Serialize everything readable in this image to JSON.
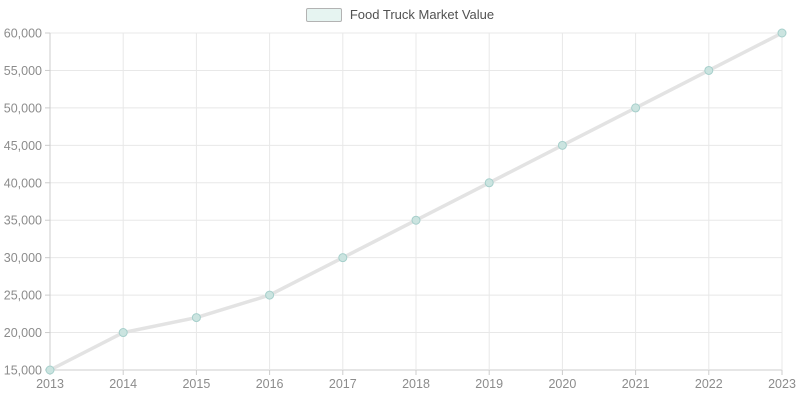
{
  "legend": {
    "label": "Food Truck Market Value"
  },
  "colors": {
    "background": "#ffffff",
    "grid": "#e8e8e8",
    "axis": "#cccccc",
    "tick": "#cccccc",
    "axis_label": "#8c8c8c",
    "legend_text": "#525252",
    "legend_swatch_fill": "#e6f4f1",
    "legend_swatch_border": "#b3b3b3",
    "line": "#e3e3e3",
    "point_fill": "#cbe4e0",
    "point_stroke": "#a6cfcb"
  },
  "chart_data": {
    "type": "line",
    "title": "",
    "legend_label": "Food Truck Market Value",
    "legend_position": "top-center",
    "x": [
      2013,
      2014,
      2015,
      2016,
      2017,
      2018,
      2019,
      2020,
      2021,
      2022,
      2023
    ],
    "series": [
      {
        "name": "Food Truck Market Value",
        "values": [
          15000,
          20000,
          22000,
          25000,
          30000,
          35000,
          40000,
          45000,
          50000,
          55000,
          60000
        ]
      }
    ],
    "xlabel": "",
    "ylabel": "",
    "ylim": [
      15000,
      60000
    ],
    "ytick_step": 5000,
    "grid": true
  }
}
